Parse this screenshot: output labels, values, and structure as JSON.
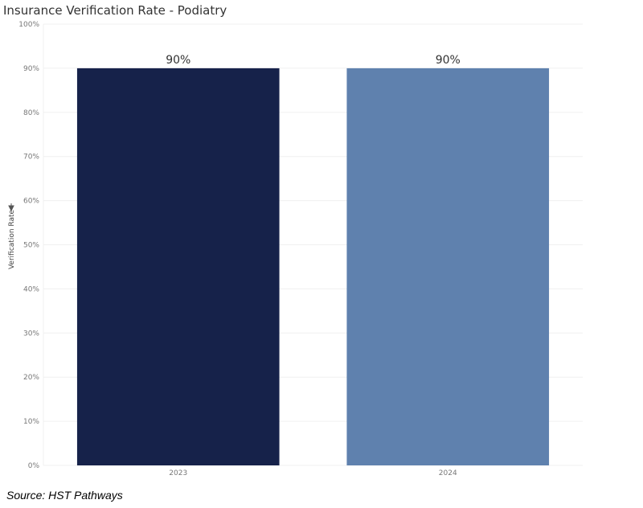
{
  "title": "Insurance Verification Rate - Podiatry",
  "source_note": "Source: HST Pathways",
  "chart_data": {
    "type": "bar",
    "title": "Insurance Verification Rate - Podiatry",
    "categories": [
      "2023",
      "2024"
    ],
    "values": [
      90,
      90
    ],
    "data_labels": [
      "90%",
      "90%"
    ],
    "colors": [
      "#16224a",
      "#5f81ae"
    ],
    "xlabel": "",
    "ylabel": "Verification Rate",
    "ylim": [
      0,
      100
    ],
    "yticks": [
      0,
      10,
      20,
      30,
      40,
      50,
      60,
      70,
      80,
      90,
      100
    ],
    "ytick_labels": [
      "0%",
      "10%",
      "20%",
      "30%",
      "40%",
      "50%",
      "60%",
      "70%",
      "80%",
      "90%",
      "100%"
    ],
    "grid": true,
    "legend": "none"
  }
}
